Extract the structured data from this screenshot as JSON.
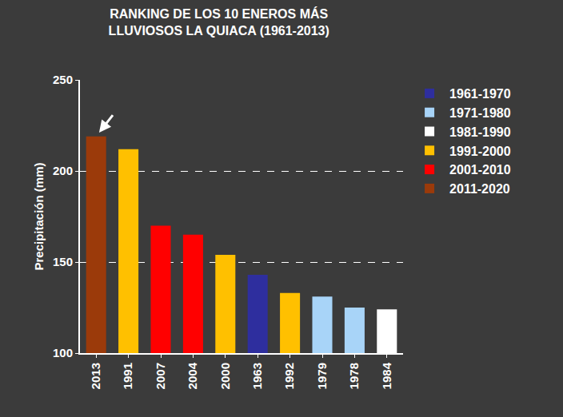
{
  "chart_data": {
    "type": "bar",
    "title": "RANKING DE LOS 10 ENEROS MÁS LLUVIOSOS LA QUIACA (1961-2013)",
    "y_label": "Precipitación (mm)",
    "categories": [
      "2013",
      "1991",
      "2007",
      "2004",
      "2000",
      "1963",
      "1992",
      "1979",
      "1978",
      "1984"
    ],
    "series": [
      {
        "name": "1961-1970",
        "color": "#2e2e9e",
        "values": [
          null,
          null,
          null,
          null,
          null,
          143,
          null,
          null,
          null,
          null
        ]
      },
      {
        "name": "1971-1980",
        "color": "#a8d4f8",
        "values": [
          null,
          null,
          null,
          null,
          null,
          null,
          null,
          131,
          125,
          null
        ]
      },
      {
        "name": "1981-1990",
        "color": "#ffffff",
        "values": [
          null,
          null,
          null,
          null,
          null,
          null,
          null,
          null,
          null,
          124
        ]
      },
      {
        "name": "1991-2000",
        "color": "#ffc000",
        "values": [
          null,
          212,
          null,
          null,
          154,
          null,
          133,
          null,
          null,
          null
        ]
      },
      {
        "name": "2001-2010",
        "color": "#ff0000",
        "values": [
          null,
          null,
          170,
          165,
          null,
          null,
          null,
          null,
          null,
          null
        ]
      },
      {
        "name": "2011-2020",
        "color": "#9b3a0a",
        "values": [
          219,
          null,
          null,
          null,
          null,
          null,
          null,
          null,
          null,
          null
        ]
      }
    ],
    "ylim": [
      100,
      250
    ],
    "yticks": [
      100,
      150,
      200,
      250
    ],
    "grid": true,
    "legend": "right"
  }
}
